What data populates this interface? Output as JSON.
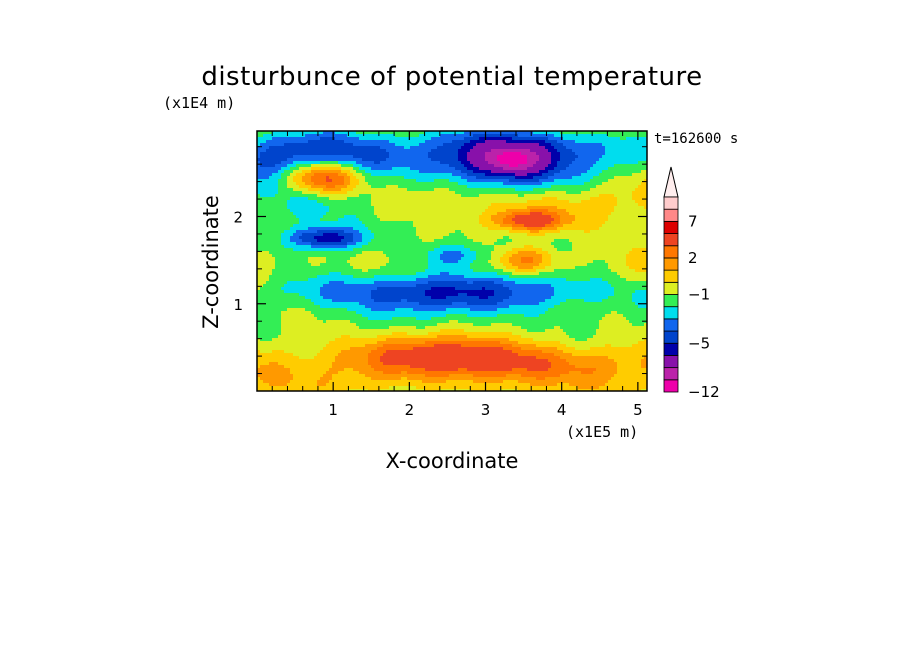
{
  "chart_data": {
    "type": "heatmap",
    "title": "disturbunce of potential temperature",
    "time_label": "t=162600 s",
    "xlabel": "X-coordinate",
    "ylabel": "Z-coordinate",
    "x_unit": "(x1E5 m)",
    "y_unit": "(x1E4 m)",
    "xlim": [
      0,
      5.12
    ],
    "ylim": [
      0,
      2.98
    ],
    "x_ticks": [
      1,
      2,
      3,
      4,
      5
    ],
    "y_ticks": [
      1,
      2
    ],
    "x_tick_labels": [
      "1",
      "2",
      "3",
      "4",
      "5"
    ],
    "y_tick_labels": [
      "1",
      "2"
    ],
    "colorbar": {
      "colors": [
        "#ee00aa",
        "#bb22aa",
        "#8811aa",
        "#0000aa",
        "#0044cc",
        "#1166ee",
        "#00ddee",
        "#33ee55",
        "#ddee22",
        "#ffcc00",
        "#ff9900",
        "#ff7700",
        "#ee4422",
        "#dd0000",
        "#ff8888",
        "#ffcccc"
      ],
      "extend_top_color": "#ffeeee",
      "tick_labels": [
        "7",
        "2",
        "-1",
        "-5",
        "-12"
      ],
      "tick_levels": [
        7,
        2,
        -1,
        -5,
        -12
      ],
      "levels": [
        -12,
        -10,
        -8,
        -6,
        -5,
        -4,
        -3,
        -2,
        -1,
        0,
        1,
        2,
        3,
        5,
        7,
        9,
        11
      ]
    },
    "features": [
      {
        "x": 0.85,
        "z": 2.45,
        "value": 10,
        "sx": 0.55,
        "sz": 0.22
      },
      {
        "x": 0.75,
        "z": 2.5,
        "value": -7,
        "sx": 0.95,
        "sz": 0.5
      },
      {
        "x": 0.9,
        "z": 1.75,
        "value": -4.5,
        "sx": 0.45,
        "sz": 0.12
      },
      {
        "x": 3.5,
        "z": 2.65,
        "value": -8,
        "sx": 1.25,
        "sz": 0.35
      },
      {
        "x": 3.35,
        "z": 2.65,
        "value": -4,
        "sx": 0.25,
        "sz": 0.1
      },
      {
        "x": 4.1,
        "z": 2.6,
        "value": 3,
        "sx": 0.6,
        "sz": 0.25
      },
      {
        "x": 3.55,
        "z": 1.95,
        "value": 4.5,
        "sx": 0.45,
        "sz": 0.12
      },
      {
        "x": 3.55,
        "z": 1.5,
        "value": 3,
        "sx": 0.4,
        "sz": 0.15
      },
      {
        "x": 2.6,
        "z": 1.55,
        "value": -3,
        "sx": 0.5,
        "sz": 0.15
      },
      {
        "x": 2.5,
        "z": 1.15,
        "value": -5.5,
        "sx": 2.6,
        "sz": 0.25
      },
      {
        "x": 2.5,
        "z": 0.45,
        "value": 3,
        "sx": 1.2,
        "sz": 0.2
      },
      {
        "x": 3.2,
        "z": 0.3,
        "value": 2,
        "sx": 1.3,
        "sz": 0.18
      }
    ]
  }
}
